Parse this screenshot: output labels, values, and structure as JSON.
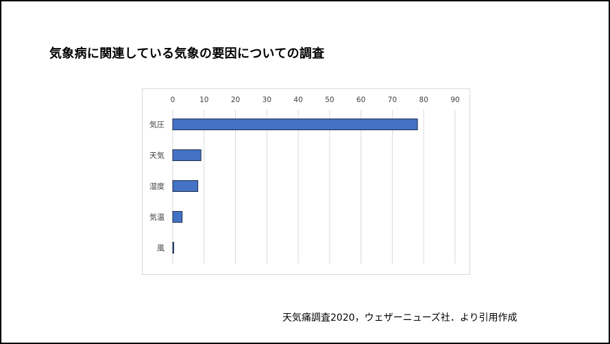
{
  "slide": {
    "title": "気象病に関連している気象の要因についての調査",
    "source": "天気痛調査2020，ウェザーニューズ社．より引用作成"
  },
  "chart_data": {
    "type": "bar",
    "orientation": "horizontal",
    "title": "",
    "categories": [
      "気圧",
      "天気",
      "湿度",
      "気温",
      "風"
    ],
    "values": [
      78,
      9,
      8,
      3,
      0.3
    ],
    "xlim": [
      0,
      90
    ],
    "ticks": [
      0,
      10,
      20,
      30,
      40,
      50,
      60,
      70,
      80,
      90
    ],
    "axis_position": "top",
    "grid": true,
    "legend": "none",
    "bar_color": "#4472c4",
    "bar_edge_color": "#1f2d4d",
    "grid_color": "#d9d9d9"
  }
}
